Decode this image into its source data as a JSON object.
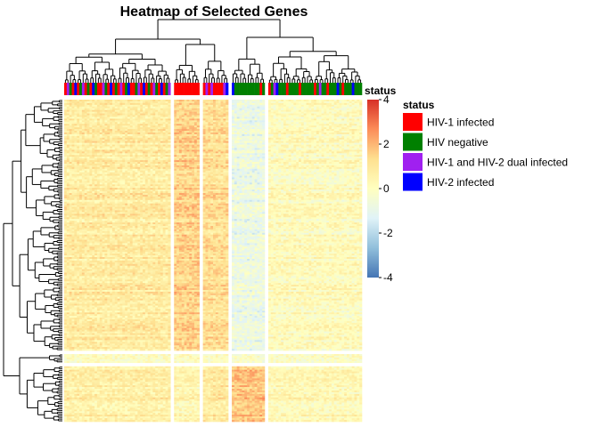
{
  "chart_data": {
    "type": "heatmap",
    "title": "Heatmap of Selected Genes",
    "annotation_label": "status",
    "legend": {
      "title": "status",
      "entries": [
        {
          "label": "HIV-1 infected",
          "color": "#ff0000"
        },
        {
          "label": "HIV negative",
          "color": "#008000"
        },
        {
          "label": "HIV-1 and HIV-2 dual infected",
          "color": "#a020f0"
        },
        {
          "label": "HIV-2 infected",
          "color": "#0000ff"
        }
      ]
    },
    "colorbar": {
      "min": -4,
      "max": 4,
      "ticks": [
        "4",
        "2",
        "0",
        "-2",
        "-4"
      ],
      "tick_values": [
        4,
        2,
        0,
        -2,
        -4
      ],
      "colors": [
        "#4575b4",
        "#91bfdb",
        "#e0f3f8",
        "#ffffbf",
        "#fee090",
        "#fc8d59",
        "#d73027"
      ]
    },
    "column_groups": [
      {
        "n": 42,
        "statuses": [
          "HIV-1 infected",
          "HIV-1 and HIV-2 dual infected",
          "HIV negative",
          "HIV-1 infected",
          "HIV-2 infected",
          "HIV-1 infected",
          "HIV negative",
          "HIV-1 and HIV-2 dual infected",
          "HIV-1 infected",
          "HIV negative",
          "HIV-1 infected",
          "HIV-2 infected",
          "HIV negative",
          "HIV-1 infected",
          "HIV-1 infected",
          "HIV-1 and HIV-2 dual infected",
          "HIV negative",
          "HIV-1 infected",
          "HIV-2 infected",
          "HIV-1 infected",
          "HIV negative",
          "HIV-1 infected",
          "HIV-1 and HIV-2 dual infected",
          "HIV-1 infected",
          "HIV negative",
          "HIV-2 infected",
          "HIV-1 infected",
          "HIV-1 infected",
          "HIV negative",
          "HIV-1 and HIV-2 dual infected",
          "HIV-1 infected",
          "HIV-2 infected",
          "HIV-1 infected",
          "HIV negative",
          "HIV-1 infected",
          "HIV-1 and HIV-2 dual infected",
          "HIV negative",
          "HIV-1 infected",
          "HIV-2 infected",
          "HIV-1 infected",
          "HIV negative",
          "HIV-1 and HIV-2 dual infected"
        ],
        "mean": 0.5
      },
      {
        "n": 10,
        "statuses": [
          "HIV-1 infected",
          "HIV-1 infected",
          "HIV-1 infected",
          "HIV-1 infected",
          "HIV-1 infected",
          "HIV-1 infected",
          "HIV-1 infected",
          "HIV-1 infected",
          "HIV-1 infected",
          "HIV-1 infected"
        ],
        "mean": 1.4
      },
      {
        "n": 10,
        "statuses": [
          "HIV-1 infected",
          "HIV-1 and HIV-2 dual infected",
          "HIV-1 infected",
          "HIV-1 and HIV-2 dual infected",
          "HIV-1 infected",
          "HIV-1 infected",
          "HIV-1 infected",
          "HIV-1 infected",
          "HIV-1 and HIV-2 dual infected",
          "HIV-2 infected"
        ],
        "mean": 1.0
      },
      {
        "n": 13,
        "statuses": [
          "HIV-2 infected",
          "HIV negative",
          "HIV negative",
          "HIV negative",
          "HIV negative",
          "HIV negative",
          "HIV negative",
          "HIV negative",
          "HIV negative",
          "HIV negative",
          "HIV negative",
          "HIV-1 infected",
          "HIV negative"
        ],
        "mean": -1.3
      },
      {
        "n": 37,
        "statuses": [
          "HIV-1 infected",
          "HIV negative",
          "HIV-1 and HIV-2 dual infected",
          "HIV-2 infected",
          "HIV negative",
          "HIV negative",
          "HIV negative",
          "HIV-1 infected",
          "HIV negative",
          "HIV negative",
          "HIV negative",
          "HIV negative",
          "HIV-1 infected",
          "HIV negative",
          "HIV negative",
          "HIV negative",
          "HIV negative",
          "HIV negative",
          "HIV-1 infected",
          "HIV negative",
          "HIV-1 and HIV-2 dual infected",
          "HIV negative",
          "HIV negative",
          "HIV-1 infected",
          "HIV negative",
          "HIV negative",
          "HIV negative",
          "HIV-2 infected",
          "HIV negative",
          "HIV-1 infected",
          "HIV negative",
          "HIV negative",
          "HIV negative",
          "HIV-2 infected",
          "HIV negative",
          "HIV negative",
          "HIV negative"
        ],
        "mean": -0.4
      }
    ],
    "row_groups": [
      {
        "n": 145,
        "means": [
          0.8,
          1.5,
          1.2,
          -0.8,
          0.1
        ]
      },
      {
        "n": 5,
        "means": [
          0.2,
          0.3,
          0.2,
          0.0,
          0.1
        ]
      },
      {
        "n": 32,
        "means": [
          0.7,
          0.4,
          0.9,
          1.8,
          0.3
        ]
      }
    ]
  }
}
